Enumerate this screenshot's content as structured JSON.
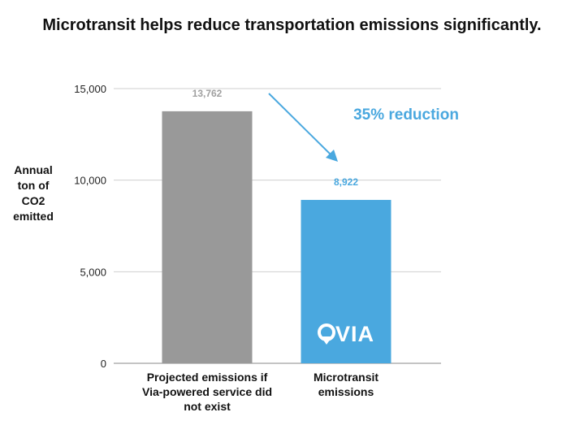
{
  "chart_data": {
    "type": "bar",
    "title": "Microtransit helps reduce transportation emissions significantly.",
    "ylabel": [
      "Annual",
      "ton of",
      "CO2",
      "emitted"
    ],
    "xlabel": "",
    "ylim": [
      0,
      15000
    ],
    "yticks": [
      0,
      5000,
      10000,
      15000
    ],
    "ytick_labels": [
      "0",
      "5,000",
      "10,000",
      "15,000"
    ],
    "grid": true,
    "categories": [
      [
        "Projected emissions if",
        "Via-powered service did",
        "not exist"
      ],
      [
        "Microtransit",
        "emissions"
      ]
    ],
    "values": [
      13762,
      8922
    ],
    "value_labels": [
      "13,762",
      "8,922"
    ],
    "bar_colors": [
      "#999999",
      "#4aa8df"
    ],
    "label_colors": [
      "#a0a0a0",
      "#4aa8df"
    ],
    "annotation": {
      "text": "35% reduction",
      "color": "#4aa8df",
      "arrow_color": "#4aa8df"
    },
    "logo_text": "VIA"
  }
}
